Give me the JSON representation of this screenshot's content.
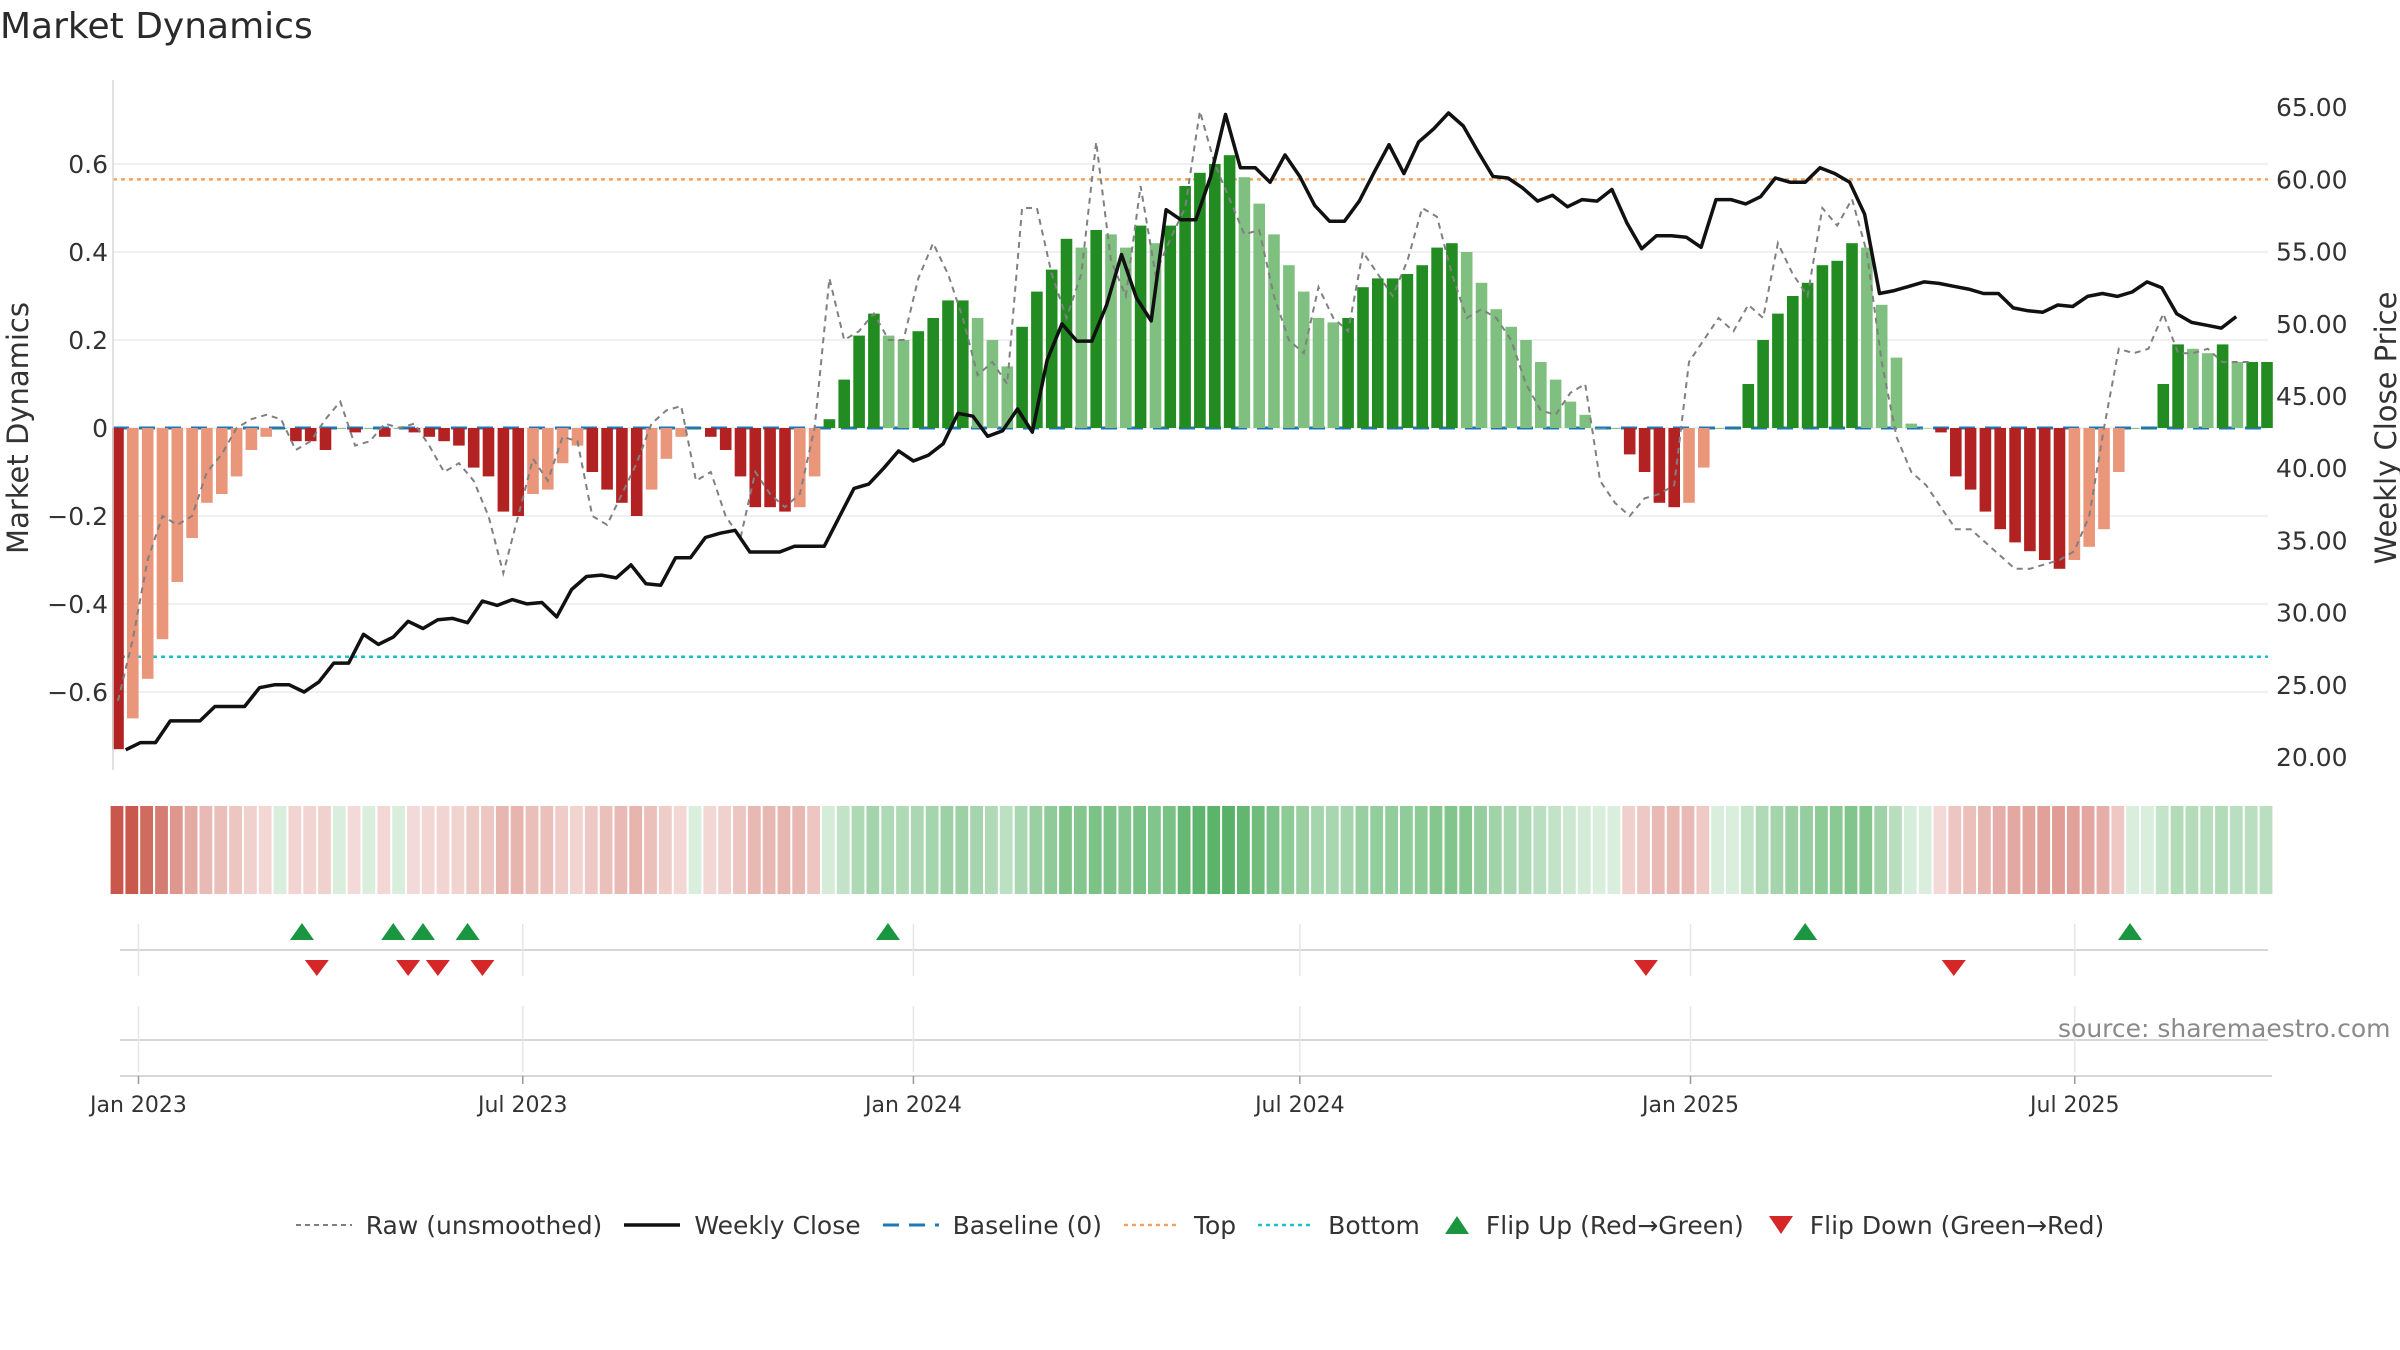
{
  "title": "Market Dynamics",
  "source": "source: sharemaestro.com",
  "colors": {
    "strong_green": "#228b22",
    "light_green": "#7fbf7f",
    "strong_red": "#b22222",
    "light_red": "#e9967a",
    "raw_line": "#808080",
    "close_line": "#111111",
    "baseline": "#1f77b4",
    "top": "#f4a460",
    "bottom": "#17becf",
    "flip_up": "#1a9641",
    "flip_down": "#d62728"
  },
  "legend": {
    "raw": "Raw (unsmoothed)",
    "close": "Weekly Close",
    "baseline": "Baseline (0)",
    "top": "Top",
    "bottom": "Bottom",
    "flip_up": "Flip Up (Red→Green)",
    "flip_down": "Flip Down (Green→Red)"
  },
  "chart_data": {
    "type": "bar",
    "ylabel_left": "Market Dynamics",
    "ylabel_right": "Weekly Close Price",
    "left_ylim": [
      -0.74,
      0.78
    ],
    "left_ticks": [
      0.6,
      0.4,
      0.2,
      0,
      -0.2,
      -0.4,
      -0.6
    ],
    "left_tick_labels": [
      "0.6",
      "0.4",
      "0.2",
      "0",
      "−0.2",
      "−0.4",
      "−0.6"
    ],
    "right_ticks": [
      65,
      60,
      55,
      50,
      45,
      40,
      35,
      30,
      25,
      20
    ],
    "right_tick_labels": [
      "65.00",
      "60.00",
      "55.00",
      "50.00",
      "45.00",
      "40.00",
      "35.00",
      "30.00",
      "25.00",
      "20.00"
    ],
    "x_start": "2022-12-20",
    "x_end": "2025-09-30",
    "x_ticks": [
      "2023-01-01",
      "2023-07-01",
      "2024-01-01",
      "2024-07-01",
      "2025-01-01",
      "2025-07-01"
    ],
    "x_tick_labels": [
      "Jan 2023",
      "Jul 2023",
      "Jan 2024",
      "Jul 2024",
      "Jan 2025",
      "Jul 2025"
    ],
    "top_level": 0.565,
    "bottom_level": -0.52,
    "baseline": 0,
    "dynamics": [
      -0.73,
      -0.66,
      -0.57,
      -0.48,
      -0.35,
      -0.25,
      -0.17,
      -0.15,
      -0.11,
      -0.05,
      -0.02,
      0,
      -0.03,
      -0.03,
      -0.05,
      0,
      -0.01,
      0,
      -0.02,
      0,
      -0.01,
      -0.02,
      -0.03,
      -0.04,
      -0.09,
      -0.11,
      -0.19,
      -0.2,
      -0.15,
      -0.14,
      -0.08,
      -0.04,
      -0.1,
      -0.14,
      -0.17,
      -0.2,
      -0.14,
      -0.07,
      -0.02,
      0,
      -0.02,
      -0.05,
      -0.11,
      -0.18,
      -0.18,
      -0.19,
      -0.18,
      -0.11,
      0.02,
      0.11,
      0.21,
      0.26,
      0.21,
      0.2,
      0.22,
      0.25,
      0.29,
      0.29,
      0.25,
      0.2,
      0.14,
      0.23,
      0.31,
      0.36,
      0.43,
      0.41,
      0.45,
      0.44,
      0.41,
      0.46,
      0.42,
      0.46,
      0.55,
      0.58,
      0.6,
      0.62,
      0.57,
      0.51,
      0.44,
      0.37,
      0.31,
      0.25,
      0.24,
      0.25,
      0.32,
      0.34,
      0.34,
      0.35,
      0.37,
      0.41,
      0.42,
      0.4,
      0.33,
      0.27,
      0.23,
      0.2,
      0.15,
      0.11,
      0.06,
      0.03,
      0,
      0,
      -0.06,
      -0.1,
      -0.17,
      -0.18,
      -0.17,
      -0.09,
      0,
      0,
      0.1,
      0.2,
      0.26,
      0.3,
      0.33,
      0.37,
      0.38,
      0.42,
      0.41,
      0.28,
      0.16,
      0.01,
      0,
      -0.01,
      -0.11,
      -0.14,
      -0.19,
      -0.23,
      -0.26,
      -0.28,
      -0.3,
      -0.32,
      -0.3,
      -0.27,
      -0.23,
      -0.1,
      0,
      0,
      0.1,
      0.19,
      0.18,
      0.17,
      0.19,
      0.15,
      0.15,
      0.15
    ],
    "raw": [
      -0.62,
      -0.48,
      -0.3,
      -0.2,
      -0.22,
      -0.2,
      -0.1,
      -0.06,
      0,
      0.02,
      0.03,
      0.02,
      -0.05,
      -0.03,
      0.02,
      0.06,
      -0.04,
      -0.03,
      0.01,
      0,
      0.01,
      -0.04,
      -0.1,
      -0.08,
      -0.12,
      -0.2,
      -0.33,
      -0.2,
      -0.07,
      -0.12,
      -0.02,
      -0.03,
      -0.2,
      -0.22,
      -0.15,
      -0.08,
      0.01,
      0.04,
      0.05,
      -0.12,
      -0.1,
      -0.2,
      -0.25,
      -0.1,
      -0.15,
      -0.18,
      -0.15,
      0,
      0.34,
      0.2,
      0.22,
      0.26,
      0.2,
      0.2,
      0.34,
      0.42,
      0.35,
      0.25,
      0.12,
      0.15,
      0.1,
      0.5,
      0.5,
      0.35,
      0.25,
      0.35,
      0.65,
      0.38,
      0.3,
      0.55,
      0.35,
      0.43,
      0.5,
      0.72,
      0.6,
      0.52,
      0.44,
      0.45,
      0.3,
      0.2,
      0.17,
      0.32,
      0.25,
      0.22,
      0.4,
      0.35,
      0.3,
      0.38,
      0.5,
      0.48,
      0.35,
      0.25,
      0.27,
      0.25,
      0.2,
      0.1,
      0.04,
      0.03,
      0.08,
      0.1,
      -0.12,
      -0.17,
      -0.2,
      -0.16,
      -0.15,
      -0.13,
      0.15,
      0.2,
      0.25,
      0.22,
      0.28,
      0.25,
      0.42,
      0.35,
      0.3,
      0.5,
      0.46,
      0.52,
      0.4,
      0.15,
      -0.02,
      -0.1,
      -0.13,
      -0.18,
      -0.23,
      -0.23,
      -0.26,
      -0.29,
      -0.32,
      -0.32,
      -0.31,
      -0.3,
      -0.28,
      -0.2,
      0,
      0.18,
      0.17,
      0.18,
      0.26,
      0.17,
      0.17,
      0.18,
      0.15,
      0.15,
      0.15
    ],
    "close_dates": [
      "2022-12-26",
      "2023-01-02",
      "2023-01-09",
      "2023-01-16",
      "2023-01-23",
      "2023-01-30",
      "2023-02-06",
      "2023-02-13",
      "2023-02-20",
      "2023-02-27",
      "2023-03-06",
      "2023-03-13",
      "2023-03-20",
      "2023-03-27",
      "2023-04-03",
      "2023-04-10",
      "2023-04-17",
      "2023-04-24",
      "2023-05-01",
      "2023-05-08",
      "2023-05-15",
      "2023-05-22",
      "2023-05-29",
      "2023-06-05",
      "2023-06-12",
      "2023-06-19",
      "2023-06-26",
      "2023-07-03",
      "2023-07-10",
      "2023-07-17",
      "2023-07-24",
      "2023-07-31",
      "2023-08-07",
      "2023-08-14",
      "2023-08-21",
      "2023-08-28",
      "2023-09-04",
      "2023-09-11",
      "2023-09-18",
      "2023-09-25",
      "2023-10-02",
      "2023-10-09",
      "2023-10-16",
      "2023-10-23",
      "2023-10-30",
      "2023-11-06",
      "2023-11-13",
      "2023-11-20",
      "2023-11-27",
      "2023-12-04",
      "2023-12-11",
      "2023-12-18",
      "2023-12-25",
      "2024-01-01",
      "2024-01-08",
      "2024-01-15",
      "2024-01-22",
      "2024-01-29",
      "2024-02-05",
      "2024-02-12",
      "2024-02-19",
      "2024-02-26",
      "2024-03-04",
      "2024-03-11",
      "2024-03-18",
      "2024-03-25",
      "2024-04-01",
      "2024-04-08",
      "2024-04-15",
      "2024-04-22",
      "2024-04-29",
      "2024-05-06",
      "2024-05-13",
      "2024-05-20",
      "2024-05-27",
      "2024-06-03",
      "2024-06-10",
      "2024-06-17",
      "2024-06-24",
      "2024-07-01",
      "2024-07-08",
      "2024-07-15",
      "2024-07-22",
      "2024-07-29",
      "2024-08-05",
      "2024-08-12",
      "2024-08-19",
      "2024-08-26",
      "2024-09-02",
      "2024-09-09",
      "2024-09-16",
      "2024-09-23",
      "2024-09-30",
      "2024-10-07",
      "2024-10-14",
      "2024-10-21",
      "2024-10-28",
      "2024-11-04",
      "2024-11-11",
      "2024-11-18",
      "2024-11-25",
      "2024-12-02",
      "2024-12-09",
      "2024-12-16",
      "2024-12-23",
      "2024-12-30",
      "2025-01-06",
      "2025-01-13",
      "2025-01-20",
      "2025-01-27",
      "2025-02-03",
      "2025-02-10",
      "2025-02-17",
      "2025-02-24",
      "2025-03-03",
      "2025-03-10",
      "2025-03-17",
      "2025-03-24",
      "2025-03-31",
      "2025-04-07",
      "2025-04-14",
      "2025-04-21",
      "2025-04-28",
      "2025-05-05",
      "2025-05-12",
      "2025-05-19",
      "2025-05-26",
      "2025-06-02",
      "2025-06-09",
      "2025-06-16",
      "2025-06-23",
      "2025-06-30",
      "2025-07-07",
      "2025-07-14",
      "2025-07-21",
      "2025-07-28",
      "2025-08-04",
      "2025-08-11",
      "2025-08-18",
      "2025-08-25",
      "2025-09-01",
      "2025-09-08",
      "2025-09-15",
      "2025-09-22"
    ],
    "close": [
      20.5,
      21,
      21,
      22.5,
      22.5,
      22.5,
      23.5,
      23.5,
      23.5,
      24.8,
      25,
      25,
      24.5,
      25.2,
      26.5,
      26.5,
      28.5,
      27.8,
      28.3,
      29.4,
      28.9,
      29.5,
      29.6,
      29.3,
      30.8,
      30.5,
      30.9,
      30.6,
      30.7,
      29.7,
      31.6,
      32.5,
      32.6,
      32.4,
      33.3,
      32,
      31.9,
      33.8,
      33.8,
      35.2,
      35.5,
      35.7,
      34.2,
      34.2,
      34.2,
      34.6,
      34.6,
      34.6,
      36.6,
      38.6,
      38.9,
      40,
      41.2,
      40.5,
      40.9,
      41.7,
      43.8,
      43.6,
      42.2,
      42.6,
      44.1,
      42.5,
      47.5,
      50,
      48.8,
      48.8,
      51.3,
      54.8,
      51.8,
      50.2,
      57.9,
      57.2,
      57.2,
      60.2,
      64.5,
      60.8,
      60.8,
      59.8,
      61.7,
      60.2,
      58.2,
      57.1,
      57.1,
      58.5,
      60.5,
      62.4,
      60.4,
      62.6,
      63.5,
      64.6,
      63.7,
      61.9,
      60.2,
      60.1,
      59.4,
      58.5,
      58.9,
      58.1,
      58.6,
      58.5,
      59.3,
      57,
      55.2,
      56.1,
      56.1,
      56,
      55.3,
      58.6,
      58.6,
      58.3,
      58.8,
      60.1,
      59.8,
      59.8,
      60.8,
      60.4,
      59.8,
      57.6,
      52.1,
      52.3,
      52.6,
      52.9,
      52.8,
      52.6,
      52.4,
      52.1,
      52.1,
      51.1,
      50.9,
      50.8,
      51.3,
      51.2,
      51.9,
      52.1,
      51.9,
      52.2,
      52.9,
      52.5,
      50.7,
      50.1,
      49.9,
      49.7,
      50.5
    ],
    "flip_up_dates": [
      "2023-03-19",
      "2023-05-01",
      "2023-05-15",
      "2023-06-05",
      "2023-12-20",
      "2025-02-24",
      "2025-07-27"
    ],
    "flip_down_dates": [
      "2023-03-26",
      "2023-05-08",
      "2023-05-22",
      "2023-06-12",
      "2024-12-11",
      "2025-05-05"
    ]
  }
}
